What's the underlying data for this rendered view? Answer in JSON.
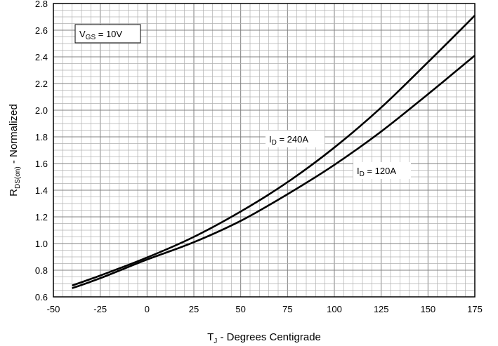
{
  "chart_data": {
    "type": "line",
    "title": "",
    "xlabel": {
      "main": "T",
      "sub": "J",
      "rest": " - Degrees Centigrade"
    },
    "ylabel": {
      "main": "R",
      "sub": "DS(on)",
      "rest": " - Normalized"
    },
    "xlim": [
      -50,
      175
    ],
    "ylim": [
      0.6,
      2.8
    ],
    "x_ticks": [
      -50,
      -25,
      0,
      25,
      50,
      75,
      100,
      125,
      150,
      175
    ],
    "y_ticks": [
      0.6,
      0.8,
      1.0,
      1.2,
      1.4,
      1.6,
      1.8,
      2.0,
      2.2,
      2.4,
      2.6,
      2.8
    ],
    "y_tick_labels": [
      "0.6",
      "0.8",
      "1.0",
      "1.2",
      "1.4",
      "1.6",
      "1.8",
      "2.0",
      "2.2",
      "2.4",
      "2.6",
      "2.8"
    ],
    "grid": true,
    "annotations": [
      {
        "main": "V",
        "sub": "GS",
        "rest": " = 10V",
        "boxed": true
      },
      {
        "main": "I",
        "sub": "D",
        "rest": " = 240A",
        "boxed": true
      },
      {
        "main": "I",
        "sub": "D",
        "rest": " = 120A",
        "boxed": true
      }
    ],
    "series": [
      {
        "id": "id-240a",
        "x": [
          -40,
          -25,
          0,
          25,
          50,
          75,
          100,
          125,
          150,
          175
        ],
        "y": [
          0.685,
          0.76,
          0.895,
          1.05,
          1.24,
          1.46,
          1.72,
          2.02,
          2.36,
          2.71
        ]
      },
      {
        "id": "id-120a",
        "x": [
          -40,
          -25,
          0,
          25,
          50,
          75,
          100,
          125,
          150,
          175
        ],
        "y": [
          0.665,
          0.74,
          0.88,
          1.01,
          1.17,
          1.37,
          1.59,
          1.84,
          2.12,
          2.41
        ]
      }
    ]
  }
}
